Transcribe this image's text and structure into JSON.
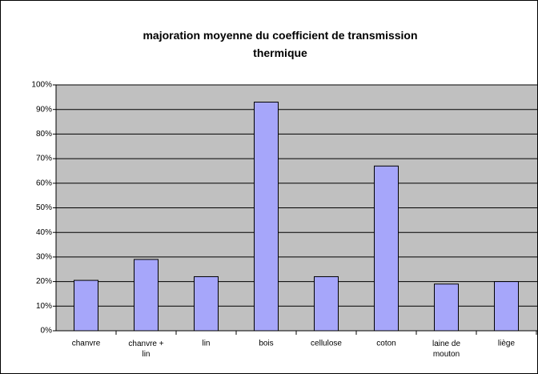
{
  "chart_data": {
    "type": "bar",
    "title": "majoration moyenne du coefficient de transmission thermique",
    "categories": [
      "chanvre",
      "chanvre + lin",
      "lin",
      "bois",
      "cellulose",
      "coton",
      "laine de mouton",
      "liège"
    ],
    "values": [
      20.5,
      29,
      22,
      93,
      22,
      67,
      19,
      20
    ],
    "color": "#a6a6fa",
    "ylim": [
      0,
      100
    ],
    "yticks": [
      {
        "value": 0,
        "label": "0%"
      },
      {
        "value": 10,
        "label": "10%"
      },
      {
        "value": 20,
        "label": "20%"
      },
      {
        "value": 30,
        "label": "30%"
      },
      {
        "value": 40,
        "label": "40%"
      },
      {
        "value": 50,
        "label": "50%"
      },
      {
        "value": 60,
        "label": "60%"
      },
      {
        "value": 70,
        "label": "70%"
      },
      {
        "value": 80,
        "label": "80%"
      },
      {
        "value": 90,
        "label": "90%"
      },
      {
        "value": 100,
        "label": "100%"
      }
    ],
    "grid": true
  }
}
